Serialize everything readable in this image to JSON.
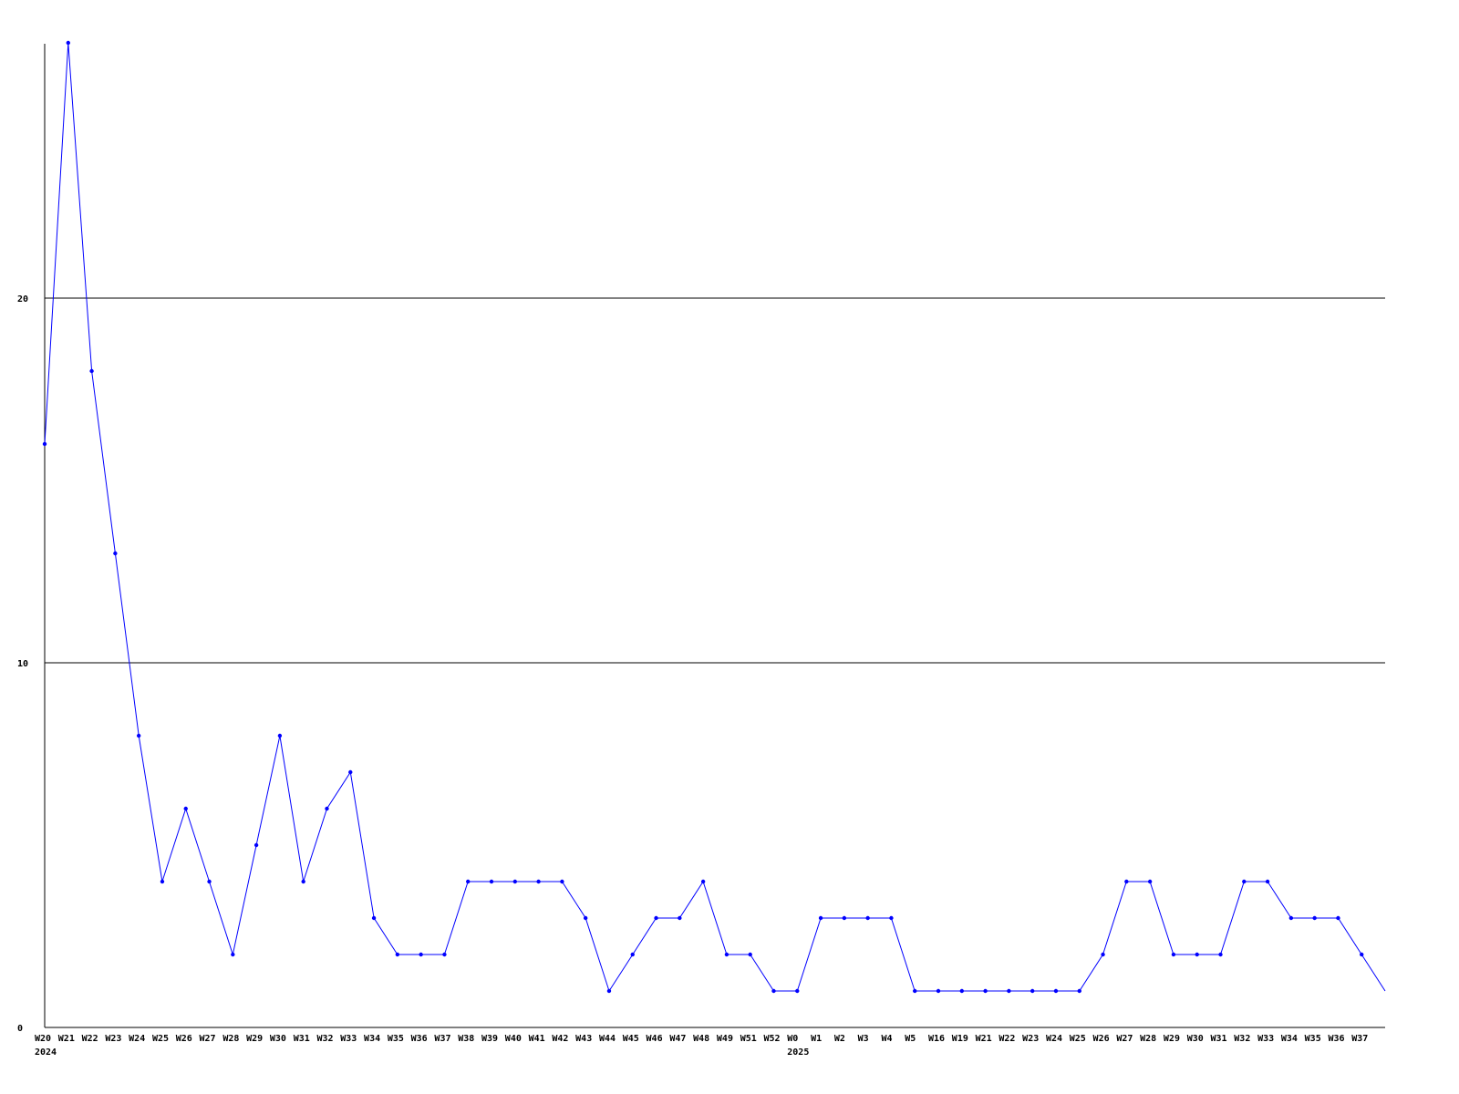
{
  "chart_data": {
    "type": "line",
    "title": "",
    "xlabel": "",
    "ylabel": "",
    "ylim": [
      0,
      27
    ],
    "yticks": [
      0,
      10,
      20
    ],
    "grid": "horizontal at y ticks",
    "line_color": "#0000ff",
    "year_labels": [
      {
        "at": "W20",
        "text": "2024",
        "index": 0
      },
      {
        "at": "W0",
        "text": "2025",
        "index": 32
      }
    ],
    "categories": [
      "W20",
      "W21",
      "W22",
      "W23",
      "W24",
      "W25",
      "W26",
      "W27",
      "W28",
      "W29",
      "W30",
      "W31",
      "W32",
      "W33",
      "W34",
      "W35",
      "W36",
      "W37",
      "W38",
      "W39",
      "W40",
      "W41",
      "W42",
      "W43",
      "W44",
      "W45",
      "W46",
      "W47",
      "W48",
      "W49",
      "W51",
      "W52",
      "W0",
      "W1",
      "W2",
      "W3",
      "W4",
      "W5",
      "W16",
      "W19",
      "W21",
      "W22",
      "W23",
      "W24",
      "W25",
      "W26",
      "W27",
      "W28",
      "W29",
      "W30",
      "W31",
      "W32",
      "W33",
      "W34",
      "W35",
      "W36",
      "W37",
      ""
    ],
    "values": [
      16,
      27,
      18,
      13,
      8,
      4,
      6,
      4,
      2,
      5,
      8,
      4,
      6,
      7,
      3,
      2,
      2,
      2,
      4,
      4,
      4,
      4,
      4,
      3,
      1,
      2,
      3,
      3,
      4,
      2,
      2,
      1,
      1,
      3,
      3,
      3,
      3,
      1,
      1,
      1,
      1,
      1,
      1,
      1,
      1,
      2,
      4,
      4,
      2,
      2,
      2,
      4,
      4,
      3,
      3,
      3,
      2,
      1
    ]
  }
}
